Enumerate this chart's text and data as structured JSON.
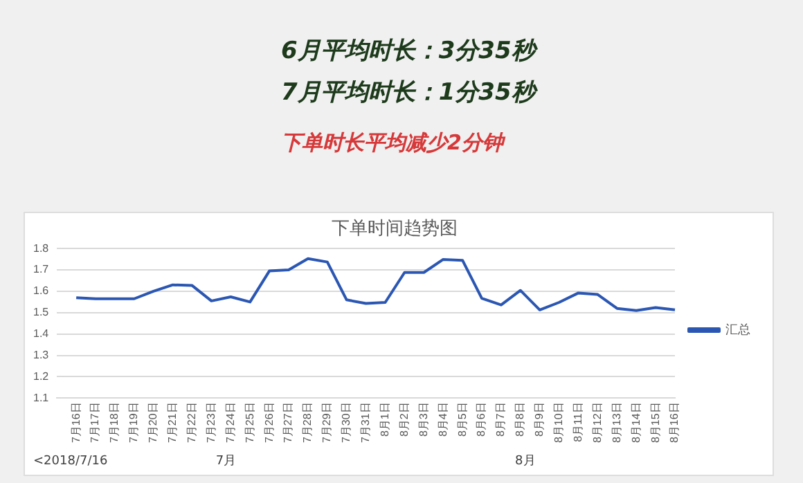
{
  "chart_data": {
    "type": "line",
    "title": "下单时间趋势图",
    "categories": [
      null,
      "7月16日",
      "7月17日",
      "7月18日",
      "7月19日",
      "7月20日",
      "7月21日",
      "7月22日",
      "7月23日",
      "7月24日",
      "7月25日",
      "7月26日",
      "7月27日",
      "7月28日",
      "7月29日",
      "7月30日",
      "7月31日",
      "8月1日",
      "8月2日",
      "8月3日",
      "8月4日",
      "8月5日",
      "8月6日",
      "8月7日",
      "8月8日",
      "8月9日",
      "8月10日",
      "8月11日",
      "8月12日",
      "8月13日",
      "8月14日",
      "8月15日",
      "8月16日"
    ],
    "series": [
      {
        "name": "汇总",
        "color": "#2b57b3",
        "values": [
          null,
          1.57,
          1.565,
          1.565,
          1.565,
          1.6,
          1.63,
          1.627,
          1.555,
          1.574,
          1.55,
          1.695,
          1.7,
          1.753,
          1.737,
          1.56,
          1.543,
          1.548,
          1.688,
          1.688,
          1.749,
          1.745,
          1.567,
          1.536,
          1.604,
          1.513,
          1.548,
          1.592,
          1.585,
          1.52,
          1.51,
          1.524,
          1.513
        ]
      }
    ],
    "ylim": [
      1.1,
      1.8
    ],
    "yticks": [
      1.1,
      1.2,
      1.3,
      1.4,
      1.5,
      1.6,
      1.7,
      1.8
    ],
    "grid": "y",
    "legend": "right",
    "marker": "none",
    "line_style": "solid",
    "annotations": [
      "6月平均时长：3分35秒",
      "7月平均时长：1分35秒",
      "下单时长平均减少2分钟",
      "<2018/7/16",
      "7月",
      "8月"
    ]
  }
}
